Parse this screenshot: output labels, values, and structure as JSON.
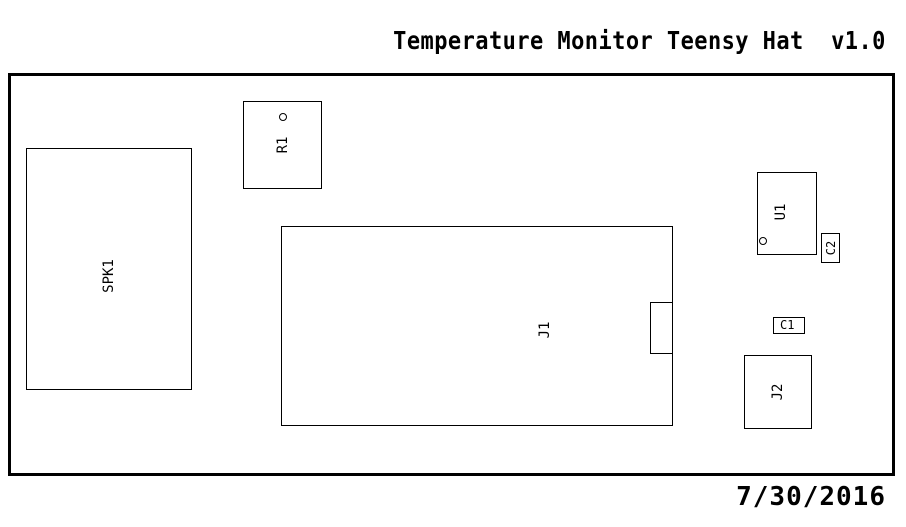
{
  "header": {
    "title": "Temperature Monitor Teensy Hat  v1.0"
  },
  "footer": {
    "date": "7/30/2016"
  },
  "components": {
    "spk1": "SPK1",
    "r1": "R1",
    "j1": "J1",
    "u1": "U1",
    "c2": "C2",
    "c1": "C1",
    "j2": "J2"
  }
}
